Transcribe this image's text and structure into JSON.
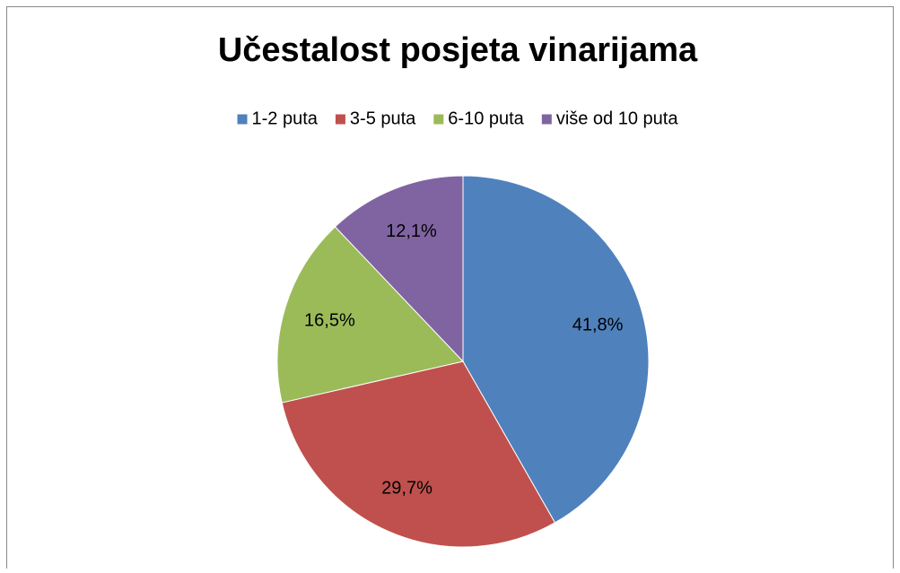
{
  "chart_data": {
    "type": "pie",
    "title": "Učestalost posjeta vinarijama",
    "categories": [
      "1-2 puta",
      "3-5 puta",
      "6-10 puta",
      "više od 10 puta"
    ],
    "values": [
      41.8,
      29.7,
      16.5,
      12.1
    ],
    "value_labels": [
      "41,8%",
      "29,7%",
      "16,5%",
      "12,1%"
    ],
    "colors": [
      "#4f81bd",
      "#c0504d",
      "#9bbb59",
      "#8064a2"
    ],
    "legend": "top"
  }
}
